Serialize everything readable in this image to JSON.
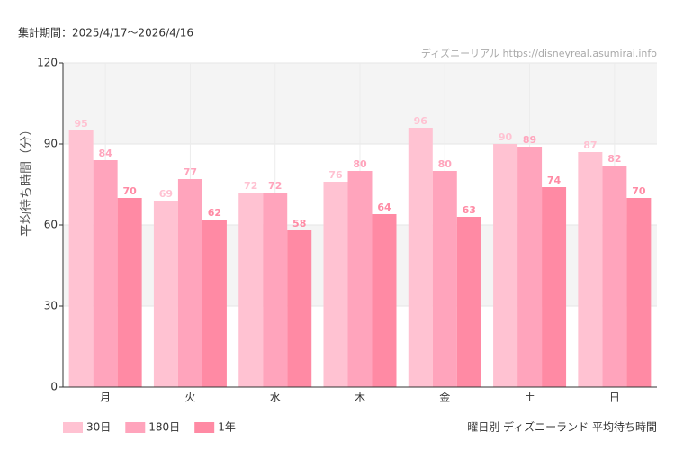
{
  "chart_data": {
    "type": "bar",
    "subtitle": "集計期間：2025/4/17〜2026/4/16",
    "source": "ディズニーリアル https://disneyreal.asumirai.info",
    "caption": "曜日別 ディズニーランド 平均待ち時間",
    "y_label": "平均待ち時間（分）",
    "categories": [
      "月",
      "火",
      "水",
      "木",
      "金",
      "土",
      "日"
    ],
    "series": [
      {
        "name": "30日",
        "color": "#ffc2d2",
        "values": [
          95,
          69,
          72,
          76,
          96,
          90,
          87
        ]
      },
      {
        "name": "180日",
        "color": "#ffa4bc",
        "values": [
          84,
          77,
          72,
          80,
          80,
          89,
          82
        ]
      },
      {
        "name": "1年",
        "color": "#ff8aa4",
        "values": [
          70,
          62,
          58,
          64,
          63,
          74,
          70
        ]
      }
    ],
    "ylim": [
      0,
      120
    ],
    "yticks": [
      0,
      30,
      60,
      90,
      120
    ],
    "grid": true
  }
}
